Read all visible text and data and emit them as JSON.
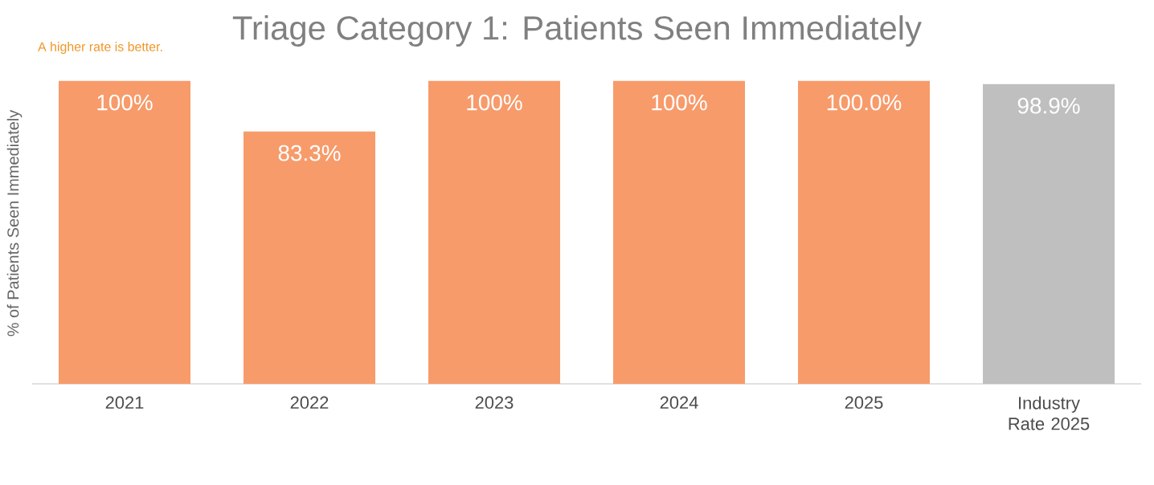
{
  "chart_data": {
    "type": "bar",
    "title": "Triage Category 1: Patients Seen Immediately",
    "ylabel": "% of Patients Seen Immediately",
    "annotations": [
      "A higher rate is better."
    ],
    "categories": [
      "2021",
      "2022",
      "2023",
      "2024",
      "2025",
      "Industry Rate 2025"
    ],
    "values": [
      100,
      83.3,
      100,
      100,
      100.0,
      98.9
    ],
    "value_labels": [
      "100%",
      "83.3%",
      "100%",
      "100%",
      "100.0%",
      "98.9%"
    ],
    "colors": [
      "#f79b6b",
      "#f79b6b",
      "#f79b6b",
      "#f79b6b",
      "#f79b6b",
      "#bfbfbf"
    ]
  }
}
